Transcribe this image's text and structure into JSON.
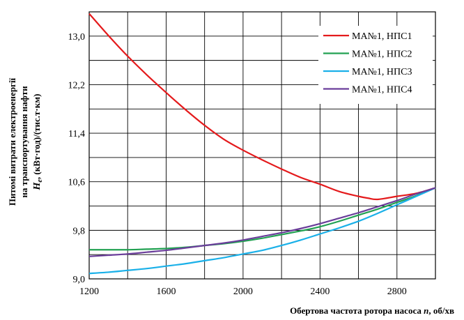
{
  "chart_data": {
    "type": "line",
    "ylabel_lines": [
      "Питомі витрати електроенергії",
      "на транспортування нафти",
      "(кВт·год)/(тис.т·км)"
    ],
    "ylabel_symbol": "H",
    "ylabel_subscript": "e",
    "ylabel_symbol_suffix": ", ",
    "xlabel_prefix": "Обертова частота ротора насоса ",
    "xlabel_symbol": "n",
    "xlabel_suffix": ", об/хв",
    "xlim": [
      1200,
      3000
    ],
    "ylim": [
      9.0,
      13.4
    ],
    "x_ticks": [
      1200,
      1600,
      2000,
      2400,
      2800
    ],
    "x_tick_labels": [
      "1200",
      "1600",
      "2000",
      "2400",
      "2800"
    ],
    "x_gridlines": [
      1200,
      1400,
      1600,
      1800,
      2000,
      2200,
      2400,
      2600,
      2800,
      3000
    ],
    "y_ticks": [
      9.0,
      9.8,
      10.6,
      11.4,
      12.2,
      13.0
    ],
    "y_tick_labels": [
      "9,0",
      "9,8",
      "10,6",
      "11,4",
      "12,2",
      "13,0"
    ],
    "y_gridlines": [
      9.0,
      9.4,
      9.8,
      10.2,
      10.6,
      11.0,
      11.4,
      11.8,
      12.2,
      12.6,
      13.0,
      13.4
    ],
    "grid": true,
    "legend_position": "top-right",
    "series": [
      {
        "name": "МА№1, НПС1",
        "color": "#e41a1c",
        "x": [
          1200,
          1300,
          1400,
          1500,
          1600,
          1700,
          1800,
          1900,
          2000,
          2100,
          2200,
          2300,
          2400,
          2500,
          2600,
          2650,
          2700,
          2800,
          2900,
          3000
        ],
        "y": [
          13.37,
          13.01,
          12.67,
          12.36,
          12.07,
          11.79,
          11.53,
          11.3,
          11.12,
          10.96,
          10.81,
          10.67,
          10.56,
          10.44,
          10.36,
          10.33,
          10.31,
          10.36,
          10.41,
          10.5
        ]
      },
      {
        "name": "МА№1, НПС2",
        "color": "#22a152",
        "x": [
          1200,
          1300,
          1400,
          1500,
          1600,
          1700,
          1800,
          1900,
          2000,
          2100,
          2200,
          2300,
          2400,
          2500,
          2600,
          2700,
          2800,
          2900,
          3000
        ],
        "y": [
          9.48,
          9.48,
          9.48,
          9.49,
          9.5,
          9.52,
          9.55,
          9.58,
          9.62,
          9.67,
          9.73,
          9.79,
          9.86,
          9.95,
          10.05,
          10.15,
          10.26,
          10.37,
          10.5
        ]
      },
      {
        "name": "МА№1, НПС3",
        "color": "#1ab0e8",
        "x": [
          1200,
          1300,
          1400,
          1500,
          1600,
          1700,
          1800,
          1900,
          2000,
          2100,
          2200,
          2300,
          2400,
          2500,
          2600,
          2700,
          2800,
          2900,
          3000
        ],
        "y": [
          9.09,
          9.11,
          9.14,
          9.17,
          9.21,
          9.25,
          9.3,
          9.35,
          9.41,
          9.47,
          9.55,
          9.64,
          9.74,
          9.84,
          9.95,
          10.08,
          10.22,
          10.36,
          10.5
        ]
      },
      {
        "name": "МА№1, НПС4",
        "color": "#6a3d9a",
        "x": [
          1200,
          1300,
          1400,
          1500,
          1600,
          1700,
          1800,
          1900,
          2000,
          2100,
          2200,
          2300,
          2400,
          2500,
          2600,
          2700,
          2800,
          2900,
          3000
        ],
        "y": [
          9.37,
          9.39,
          9.41,
          9.44,
          9.47,
          9.51,
          9.55,
          9.59,
          9.64,
          9.7,
          9.76,
          9.83,
          9.91,
          10.0,
          10.09,
          10.19,
          10.29,
          10.4,
          10.5
        ]
      }
    ]
  }
}
